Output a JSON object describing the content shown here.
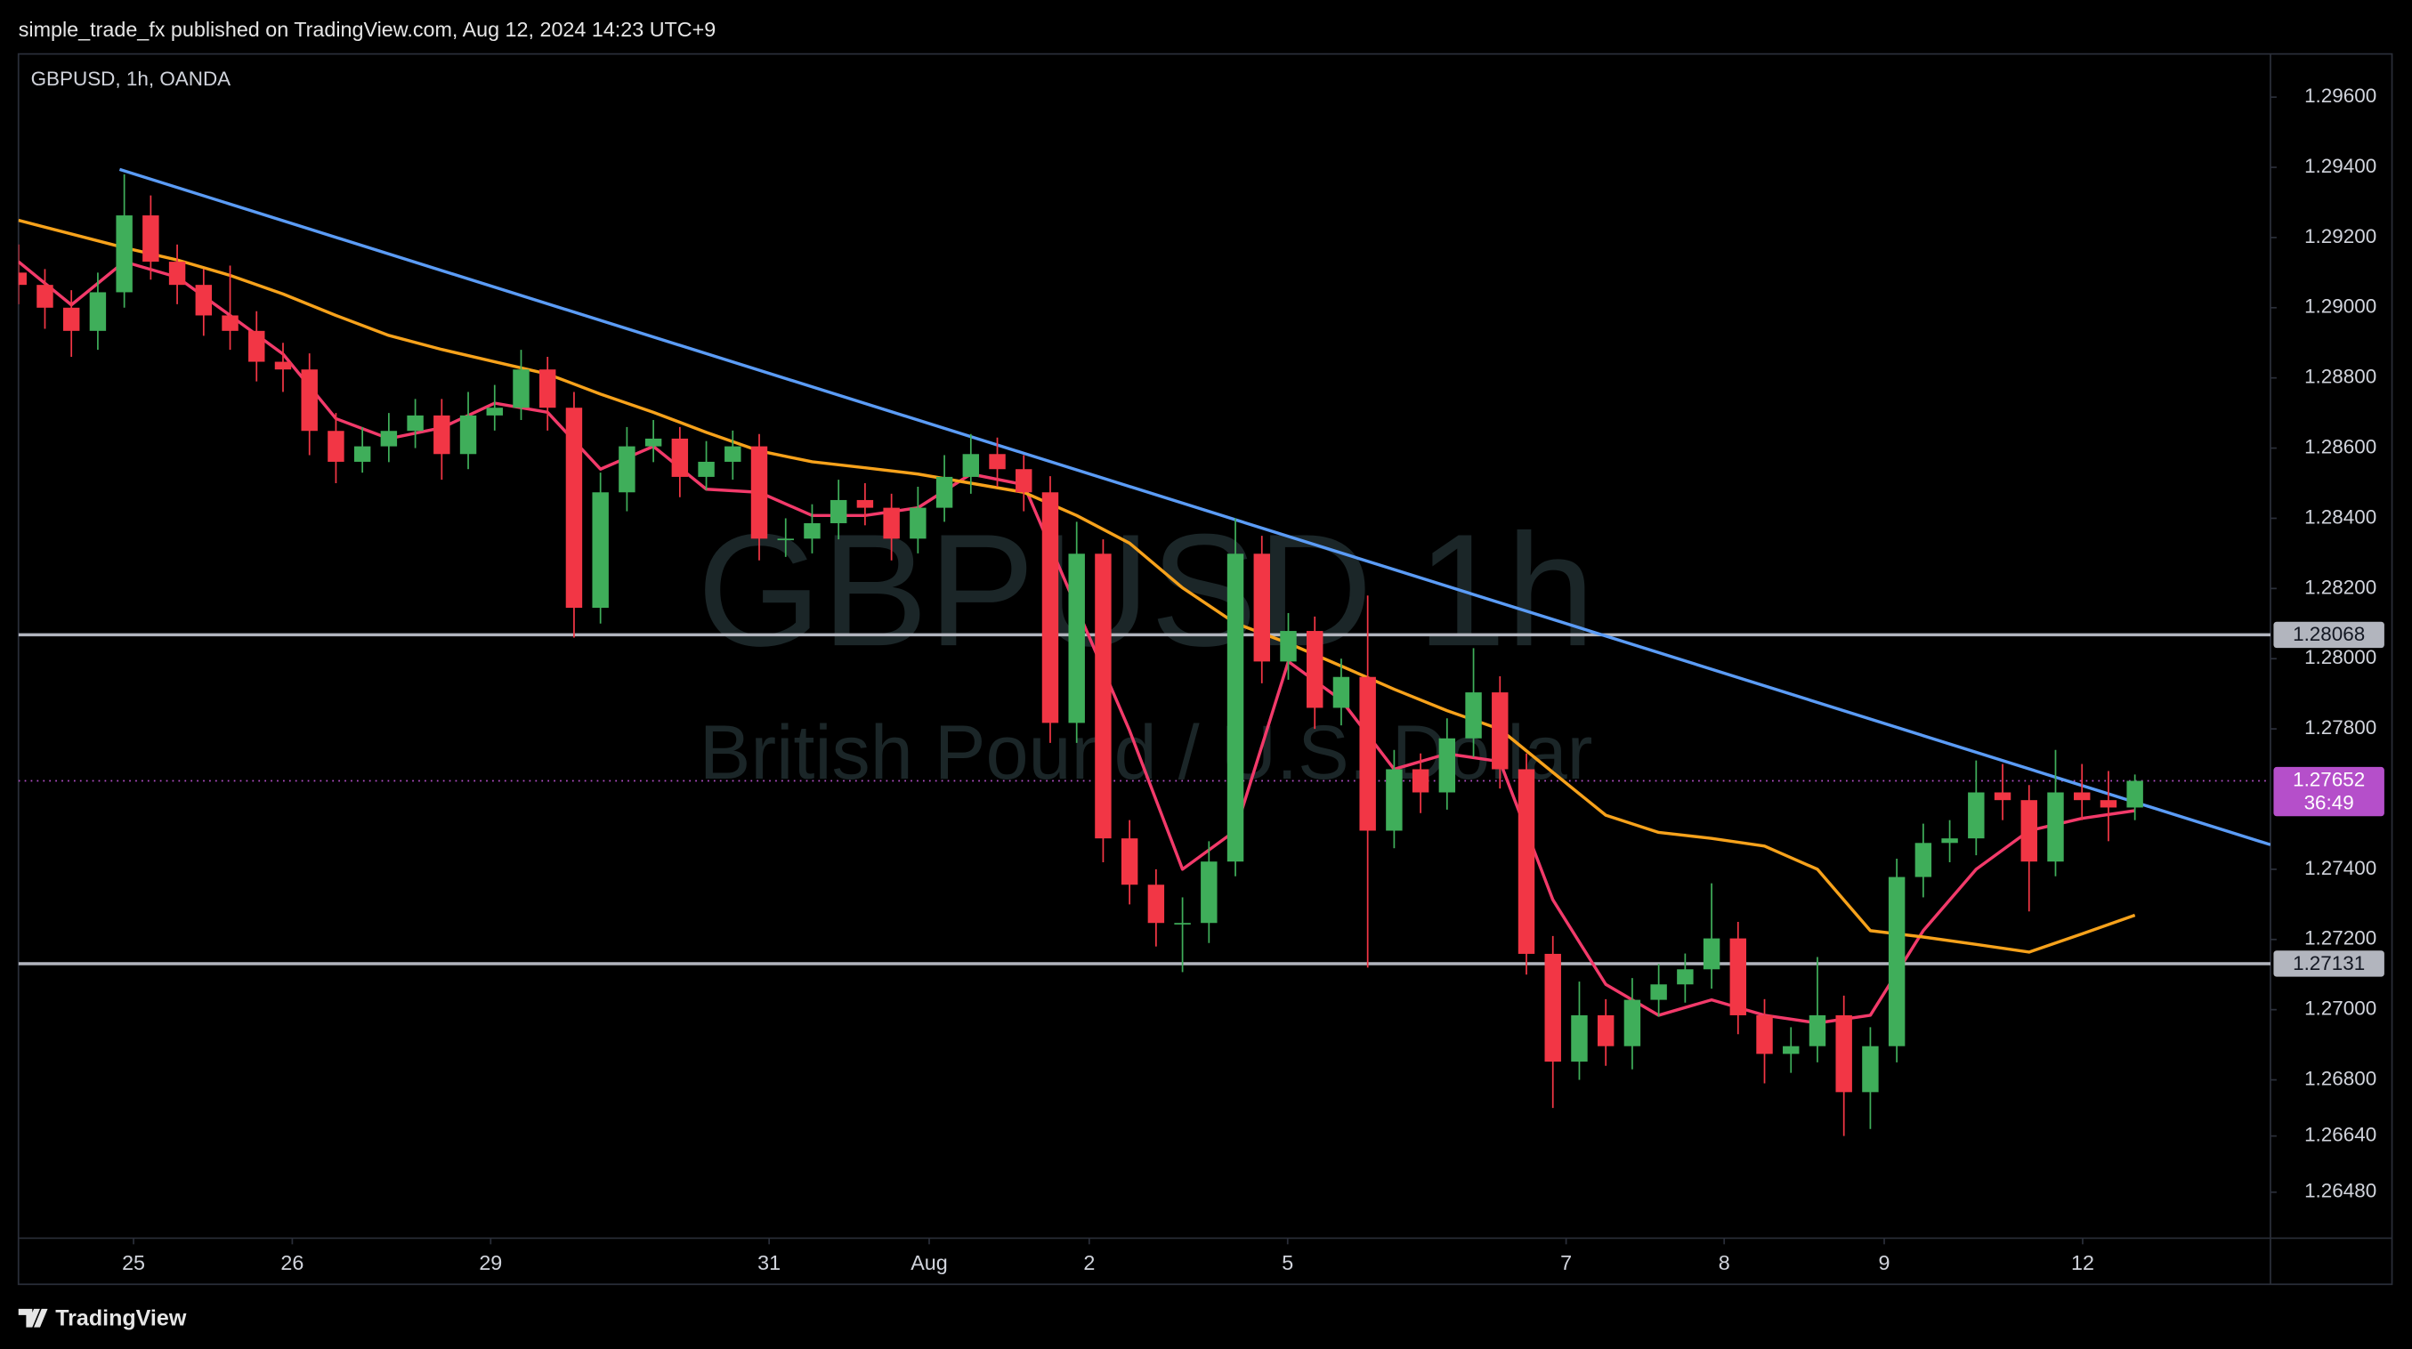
{
  "header": {
    "published": "simple_trade_fx published on TradingView.com, Aug 12, 2024 14:23 UTC+9"
  },
  "footer": {
    "brand": "TradingView"
  },
  "chart_data": {
    "type": "candlestick",
    "title": "GBPUSD, 1h, OANDA",
    "watermark": {
      "symbol": "GBPUSD 1h",
      "description": "British Pound / U.S. Dollar"
    },
    "up_color": "#3fae5a",
    "down_color": "#f23645",
    "x": [
      0,
      4,
      8,
      12,
      16,
      20,
      24,
      28,
      32,
      36,
      40,
      44,
      48,
      52,
      56,
      60,
      64,
      68,
      72,
      76,
      80,
      84,
      88,
      92,
      96,
      100,
      104,
      108,
      112,
      116,
      120,
      124,
      128,
      132,
      136,
      140,
      144,
      148,
      152,
      156,
      160,
      164,
      168,
      172,
      176,
      180,
      184,
      188,
      192,
      196,
      200,
      204,
      208,
      212,
      216,
      220,
      224,
      228,
      232,
      236,
      240,
      244,
      248,
      252,
      256,
      260,
      264,
      268,
      272,
      276,
      280,
      284,
      288,
      292,
      296,
      300,
      304,
      308,
      312,
      316,
      320
    ],
    "open": [
      1.291,
      1.29065,
      1.29,
      1.28934,
      1.29044,
      1.29263,
      1.29131,
      1.29065,
      1.28978,
      1.28934,
      1.28846,
      1.28824,
      1.28649,
      1.28561,
      1.28605,
      1.28649,
      1.28693,
      1.28583,
      1.28693,
      1.28715,
      1.28824,
      1.28715,
      1.28145,
      1.28474,
      1.28605,
      1.28627,
      1.28518,
      1.28561,
      1.28605,
      1.28342,
      1.28342,
      1.28386,
      1.28452,
      1.2843,
      1.28342,
      1.2843,
      1.28518,
      1.28583,
      1.2854,
      1.28474,
      1.27817,
      1.28299,
      1.27488,
      1.27356,
      1.27247,
      1.27247,
      1.27422,
      1.28299,
      1.27992,
      1.28079,
      1.2786,
      1.27948,
      1.2751,
      1.27685,
      1.27619,
      1.27773,
      1.27904,
      1.27685,
      1.27159,
      1.26852,
      1.26984,
      1.26896,
      1.27028,
      1.27072,
      1.27115,
      1.27203,
      1.26984,
      1.26874,
      1.26896,
      1.26984,
      1.26765,
      1.26896,
      1.27378,
      1.27475,
      1.27488,
      1.27619,
      1.27597,
      1.27422,
      1.27619,
      1.27597,
      1.27576
    ],
    "high": [
      1.2918,
      1.2911,
      1.2905,
      1.291,
      1.2938,
      1.2932,
      1.2918,
      1.2911,
      1.2912,
      1.2899,
      1.289,
      1.2887,
      1.287,
      1.2866,
      1.287,
      1.2874,
      1.2874,
      1.2876,
      1.2878,
      1.2888,
      1.2886,
      1.2876,
      1.2853,
      1.2866,
      1.2868,
      1.2866,
      1.2862,
      1.2865,
      1.2864,
      1.284,
      1.2844,
      1.2851,
      1.285,
      1.2847,
      1.2849,
      1.2858,
      1.2864,
      1.2863,
      1.2858,
      1.2852,
      1.2839,
      1.2834,
      1.2754,
      1.274,
      1.2732,
      1.2748,
      1.284,
      1.2835,
      1.2813,
      1.2812,
      1.28,
      1.2818,
      1.2774,
      1.2773,
      1.2783,
      1.2803,
      1.2795,
      1.2773,
      1.2721,
      1.2708,
      1.2703,
      1.2709,
      1.2713,
      1.2716,
      1.2736,
      1.2725,
      1.2703,
      1.2695,
      1.2715,
      1.2704,
      1.2695,
      1.2743,
      1.2753,
      1.2754,
      1.2771,
      1.277,
      1.2764,
      1.2774,
      1.277,
      1.2768,
      1.2767
    ],
    "low": [
      1.2901,
      1.2894,
      1.2886,
      1.2888,
      1.29,
      1.2908,
      1.2901,
      1.2892,
      1.2888,
      1.2879,
      1.2876,
      1.2858,
      1.285,
      1.2853,
      1.2856,
      1.286,
      1.2851,
      1.2854,
      1.2865,
      1.2868,
      1.2865,
      1.2806,
      1.281,
      1.2842,
      1.2856,
      1.2846,
      1.2848,
      1.2851,
      1.2828,
      1.2829,
      1.283,
      1.2834,
      1.2838,
      1.2828,
      1.283,
      1.2839,
      1.2847,
      1.2849,
      1.2842,
      1.2776,
      1.2776,
      1.2742,
      1.273,
      1.2718,
      1.27107,
      1.2719,
      1.2738,
      1.2793,
      1.2794,
      1.278,
      1.2781,
      1.2712,
      1.2746,
      1.2756,
      1.2757,
      1.2772,
      1.2763,
      1.271,
      1.2672,
      1.268,
      1.2684,
      1.2683,
      1.2698,
      1.2702,
      1.2706,
      1.2693,
      1.2679,
      1.2682,
      1.2685,
      1.2664,
      1.2666,
      1.2685,
      1.2732,
      1.2742,
      1.2744,
      1.2754,
      1.2728,
      1.2738,
      1.2754,
      1.2748,
      1.2754
    ],
    "close": [
      1.29065,
      1.29,
      1.28934,
      1.29044,
      1.29263,
      1.29131,
      1.29065,
      1.28978,
      1.28934,
      1.28846,
      1.28824,
      1.28649,
      1.28561,
      1.28605,
      1.28649,
      1.28693,
      1.28583,
      1.28693,
      1.28715,
      1.28824,
      1.28715,
      1.28145,
      1.28474,
      1.28605,
      1.28627,
      1.28518,
      1.28561,
      1.28605,
      1.28342,
      1.28342,
      1.28386,
      1.28452,
      1.2843,
      1.28342,
      1.2843,
      1.28518,
      1.28583,
      1.2854,
      1.28474,
      1.27817,
      1.28299,
      1.27488,
      1.27356,
      1.27247,
      1.27247,
      1.27422,
      1.28299,
      1.27992,
      1.28079,
      1.2786,
      1.27948,
      1.2751,
      1.27685,
      1.27619,
      1.27773,
      1.27904,
      1.27685,
      1.27159,
      1.26852,
      1.26984,
      1.26896,
      1.27028,
      1.27072,
      1.27115,
      1.27203,
      1.26984,
      1.26874,
      1.26896,
      1.26984,
      1.26765,
      1.26896,
      1.27378,
      1.27475,
      1.27488,
      1.27619,
      1.27597,
      1.27422,
      1.27619,
      1.27597,
      1.27576,
      1.27652
    ],
    "overlays": [
      {
        "color": "#f23a6a",
        "x": [
          0,
          8,
          16,
          24,
          32,
          40,
          48,
          56,
          64,
          72,
          80,
          88,
          96,
          104,
          112,
          120,
          128,
          136,
          144,
          152,
          160,
          168,
          176,
          184,
          192,
          200,
          208,
          216,
          224,
          232,
          240,
          248,
          256,
          264,
          272,
          280,
          288,
          296,
          304,
          312,
          320
        ],
        "values": [
          1.29131,
          1.29008,
          1.29131,
          1.29087,
          1.28978,
          1.28868,
          1.28684,
          1.28627,
          1.28658,
          1.28728,
          1.28702,
          1.2854,
          1.28605,
          1.28483,
          1.28474,
          1.28408,
          1.28408,
          1.2843,
          1.28526,
          1.28496,
          1.28145,
          1.27795,
          1.274,
          1.2751,
          1.27992,
          1.27882,
          1.27685,
          1.27729,
          1.27707,
          1.27313,
          1.27072,
          1.26984,
          1.27028,
          1.26984,
          1.26962,
          1.26984,
          1.27225,
          1.274,
          1.2751,
          1.27545,
          1.27567
        ]
      },
      {
        "color": "#f7a21b",
        "x": [
          0,
          8,
          16,
          24,
          32,
          40,
          48,
          56,
          64,
          72,
          80,
          88,
          96,
          104,
          112,
          120,
          128,
          136,
          144,
          152,
          160,
          168,
          176,
          184,
          192,
          200,
          208,
          216,
          224,
          232,
          240,
          248,
          256,
          264,
          272,
          280,
          288,
          296,
          304,
          312,
          320
        ],
        "values": [
          1.29249,
          1.2921,
          1.29171,
          1.29136,
          1.29092,
          1.29039,
          1.28978,
          1.28921,
          1.28881,
          1.28846,
          1.28811,
          1.28754,
          1.28702,
          1.28645,
          1.28592,
          1.28561,
          1.28544,
          1.28526,
          1.285,
          1.28474,
          1.28408,
          1.28329,
          1.28202,
          1.28101,
          1.28044,
          1.27979,
          1.27913,
          1.27852,
          1.27799,
          1.27676,
          1.27554,
          1.27505,
          1.27488,
          1.27466,
          1.274,
          1.27225,
          1.27207,
          1.27186,
          1.27164,
          1.27216,
          1.27269
        ]
      }
    ],
    "trendline": {
      "color": "#5b9cf6",
      "x": [
        15.3,
        340.5
      ],
      "values": [
        1.29394,
        1.2747
      ]
    },
    "levels": [
      {
        "value": 1.28068,
        "color": "#b2b5be"
      },
      {
        "value": 1.27131,
        "color": "#b2b5be"
      }
    ],
    "last": {
      "value": 1.27652,
      "countdown": "36:49",
      "color": "#b54fca"
    },
    "xlim": [
      0,
      340.5
    ],
    "xticks": [
      {
        "value": 17.4,
        "label": "25"
      },
      {
        "value": 41.4,
        "label": "26"
      },
      {
        "value": 71.4,
        "label": "29"
      },
      {
        "value": 113.5,
        "label": "31"
      },
      {
        "value": 137.7,
        "label": "Aug"
      },
      {
        "value": 161.9,
        "label": "2"
      },
      {
        "value": 191.9,
        "label": "5"
      },
      {
        "value": 234,
        "label": "7"
      },
      {
        "value": 257.9,
        "label": "8"
      },
      {
        "value": 282.1,
        "label": "9"
      },
      {
        "value": 312.1,
        "label": "12"
      }
    ],
    "ylim": [
      1.26349,
      1.29723
    ],
    "yticks": [
      {
        "value": 1.296,
        "label": "1.29600"
      },
      {
        "value": 1.294,
        "label": "1.29400"
      },
      {
        "value": 1.292,
        "label": "1.29200"
      },
      {
        "value": 1.29,
        "label": "1.29000"
      },
      {
        "value": 1.288,
        "label": "1.28800"
      },
      {
        "value": 1.286,
        "label": "1.28600"
      },
      {
        "value": 1.284,
        "label": "1.28400"
      },
      {
        "value": 1.282,
        "label": "1.28200"
      },
      {
        "value": 1.28,
        "label": "1.28000"
      },
      {
        "value": 1.278,
        "label": "1.27800"
      },
      {
        "value": 1.274,
        "label": "1.27400"
      },
      {
        "value": 1.272,
        "label": "1.27200"
      },
      {
        "value": 1.27,
        "label": "1.27000"
      },
      {
        "value": 1.268,
        "label": "1.26800"
      },
      {
        "value": 1.2664,
        "label": "1.26640"
      },
      {
        "value": 1.2648,
        "label": "1.26480"
      }
    ]
  }
}
